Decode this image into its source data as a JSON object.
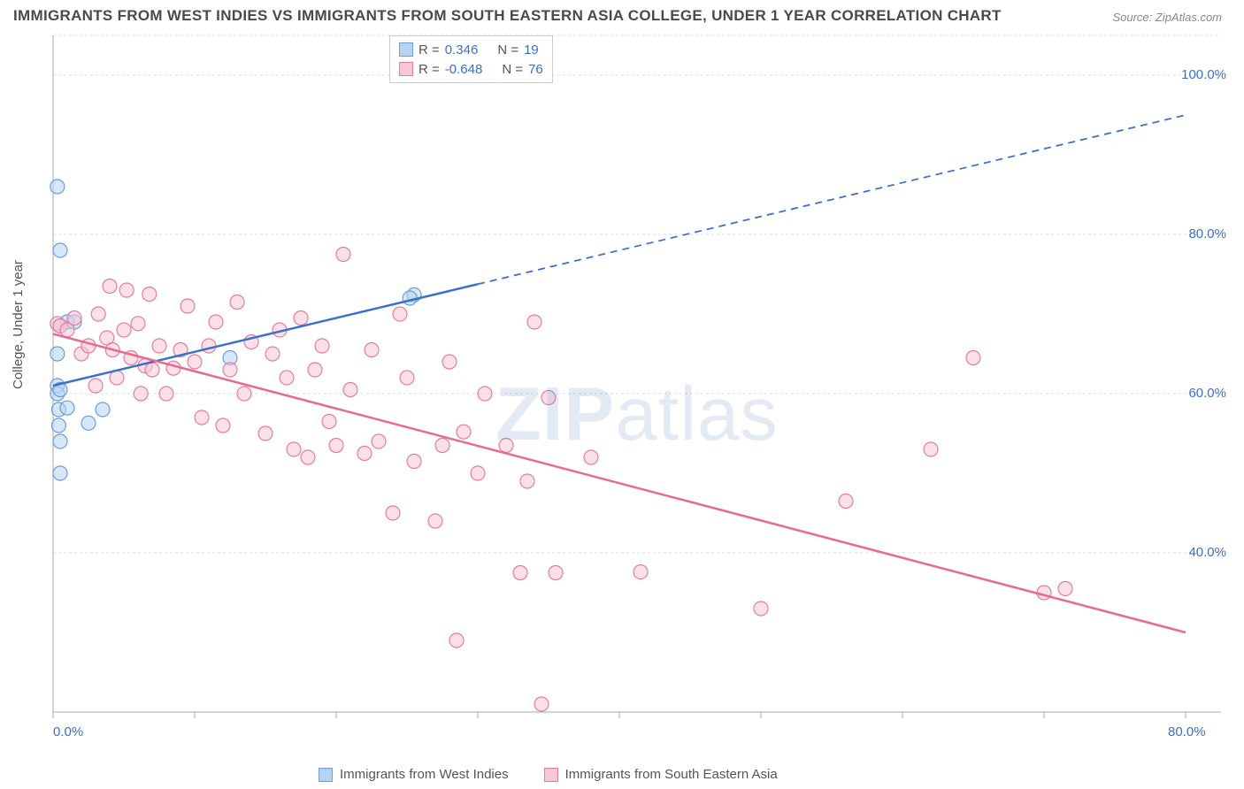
{
  "title": "IMMIGRANTS FROM WEST INDIES VS IMMIGRANTS FROM SOUTH EASTERN ASIA COLLEGE, UNDER 1 YEAR CORRELATION CHART",
  "source": "Source: ZipAtlas.com",
  "watermark": {
    "bold": "ZIP",
    "rest": "atlas"
  },
  "chart": {
    "type": "scatter-with-trendlines",
    "background_color": "#ffffff",
    "grid_color": "#dddddd",
    "axis_line_color": "#aaaaaa",
    "xlim": [
      0,
      80
    ],
    "ylim": [
      20,
      105
    ],
    "x_axis": {
      "tick_positions": [
        0,
        10,
        20,
        30,
        40,
        50,
        60,
        70,
        80
      ],
      "labeled_ticks": [
        0,
        80
      ],
      "labels": {
        "0": "0.0%",
        "80": "80.0%"
      },
      "label_color": "#3b6fc9",
      "label_fontsize": 15
    },
    "y_axis": {
      "title": "College, Under 1 year",
      "title_fontsize": 15,
      "tick_positions": [
        40,
        60,
        80,
        100
      ],
      "labels": {
        "40": "40.0%",
        "60": "60.0%",
        "80": "80.0%",
        "100": "100.0%"
      },
      "label_color": "#3b6fc9",
      "label_fontsize": 15
    },
    "legend_top": {
      "rows": [
        {
          "swatch_fill": "#b7d3f2",
          "swatch_stroke": "#6a9ed8",
          "R_label": "R =",
          "R": "0.346",
          "N_label": "N =",
          "N": "19"
        },
        {
          "swatch_fill": "#f7c7d3",
          "swatch_stroke": "#e37da0",
          "R_label": "R =",
          "R": "-0.648",
          "N_label": "N =",
          "N": "76"
        }
      ]
    },
    "legend_bottom": {
      "items": [
        {
          "swatch_fill": "#b7d3f2",
          "swatch_stroke": "#6a9ed8",
          "label": "Immigrants from West Indies"
        },
        {
          "swatch_fill": "#f7c7d3",
          "swatch_stroke": "#e37da0",
          "label": "Immigrants from South Eastern Asia"
        }
      ]
    },
    "series": [
      {
        "name": "west_indies",
        "marker_fill": "rgba(183,211,242,0.55)",
        "marker_stroke": "#6a9ed8",
        "marker_radius": 8,
        "trend": {
          "stroke": "#3b6fc9",
          "stroke_width": 2.5,
          "x1": 0,
          "y1": 61,
          "x2": 80,
          "y2": 95,
          "solid_to_x": 30
        },
        "points": [
          [
            0.3,
            86
          ],
          [
            0.5,
            78
          ],
          [
            1.0,
            69
          ],
          [
            0.5,
            68.5
          ],
          [
            1.5,
            69
          ],
          [
            0.3,
            65
          ],
          [
            0.3,
            61
          ],
          [
            0.3,
            60
          ],
          [
            0.5,
            60.5
          ],
          [
            0.4,
            58
          ],
          [
            1.0,
            58.2
          ],
          [
            3.5,
            58
          ],
          [
            0.4,
            56
          ],
          [
            2.5,
            56.3
          ],
          [
            0.5,
            54
          ],
          [
            0.5,
            50
          ],
          [
            12.5,
            64.5
          ],
          [
            25.5,
            72.4
          ],
          [
            25.2,
            72
          ]
        ]
      },
      {
        "name": "south_eastern_asia",
        "marker_fill": "rgba(247,199,211,0.55)",
        "marker_stroke": "#e37da0",
        "marker_radius": 8,
        "trend": {
          "stroke": "#e96a8f",
          "stroke_width": 2.5,
          "x1": 0,
          "y1": 67.5,
          "x2": 80,
          "y2": 30,
          "solid_to_x": 80
        },
        "points": [
          [
            0.3,
            68.8
          ],
          [
            0.5,
            68.5
          ],
          [
            1.0,
            68
          ],
          [
            1.5,
            69.5
          ],
          [
            2.0,
            65
          ],
          [
            2.5,
            66
          ],
          [
            3.0,
            61
          ],
          [
            3.2,
            70
          ],
          [
            3.8,
            67
          ],
          [
            4.0,
            73.5
          ],
          [
            4.2,
            65.5
          ],
          [
            4.5,
            62
          ],
          [
            5.0,
            68
          ],
          [
            5.2,
            73
          ],
          [
            5.5,
            64.5
          ],
          [
            6.0,
            68.8
          ],
          [
            6.2,
            60
          ],
          [
            6.5,
            63.5
          ],
          [
            6.8,
            72.5
          ],
          [
            7.0,
            63
          ],
          [
            7.5,
            66
          ],
          [
            8.0,
            60
          ],
          [
            8.5,
            63.2
          ],
          [
            9.0,
            65.5
          ],
          [
            9.5,
            71
          ],
          [
            10.0,
            64
          ],
          [
            10.5,
            57
          ],
          [
            11.0,
            66
          ],
          [
            11.5,
            69
          ],
          [
            12.0,
            56
          ],
          [
            12.5,
            63
          ],
          [
            13.0,
            71.5
          ],
          [
            13.5,
            60
          ],
          [
            14.0,
            66.5
          ],
          [
            15.0,
            55
          ],
          [
            15.5,
            65
          ],
          [
            16.0,
            68
          ],
          [
            16.5,
            62
          ],
          [
            17.0,
            53
          ],
          [
            17.5,
            69.5
          ],
          [
            18.0,
            52
          ],
          [
            18.5,
            63
          ],
          [
            19.0,
            66
          ],
          [
            19.5,
            56.5
          ],
          [
            20.0,
            53.5
          ],
          [
            20.5,
            77.5
          ],
          [
            21.0,
            60.5
          ],
          [
            22.0,
            52.5
          ],
          [
            22.5,
            65.5
          ],
          [
            23.0,
            54
          ],
          [
            24.0,
            45
          ],
          [
            24.5,
            70
          ],
          [
            25.0,
            62
          ],
          [
            25.5,
            51.5
          ],
          [
            27.0,
            44
          ],
          [
            27.5,
            53.5
          ],
          [
            28.0,
            64
          ],
          [
            28.5,
            29
          ],
          [
            29.0,
            55.2
          ],
          [
            30.0,
            50
          ],
          [
            30.5,
            60
          ],
          [
            32.0,
            53.5
          ],
          [
            33.0,
            37.5
          ],
          [
            33.5,
            49
          ],
          [
            34.0,
            69
          ],
          [
            34.5,
            21
          ],
          [
            35.0,
            59.5
          ],
          [
            35.5,
            37.5
          ],
          [
            38.0,
            52
          ],
          [
            41.5,
            37.6
          ],
          [
            50.0,
            33
          ],
          [
            56.0,
            46.5
          ],
          [
            62.0,
            53
          ],
          [
            65.0,
            64.5
          ],
          [
            70.0,
            35
          ],
          [
            71.5,
            35.5
          ]
        ]
      }
    ]
  }
}
